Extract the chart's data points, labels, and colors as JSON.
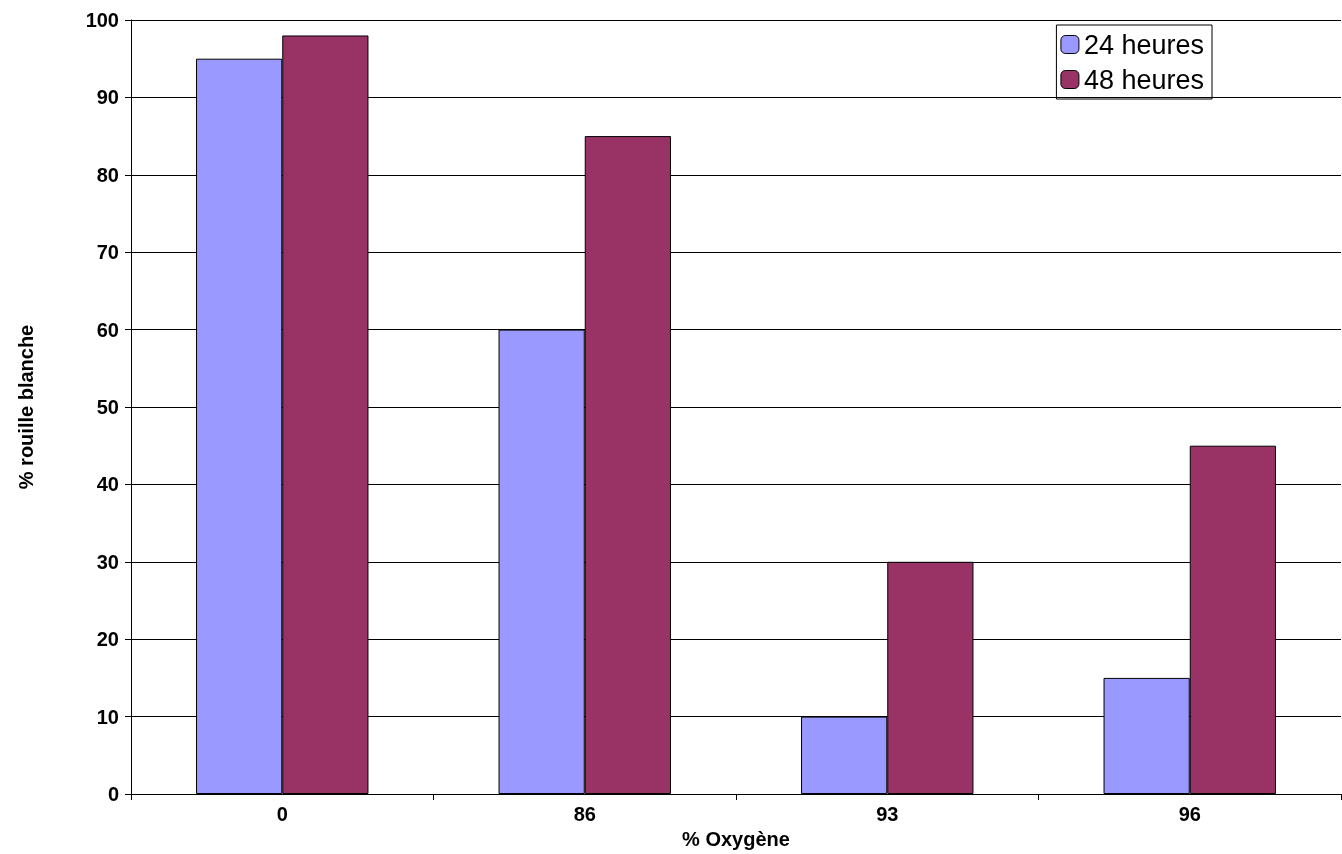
{
  "chart_data": {
    "type": "bar",
    "xlabel": "% Oxygène",
    "ylabel": "% rouille blanche",
    "categories": [
      "0",
      "86",
      "93",
      "96"
    ],
    "series": [
      {
        "name": "24 heures",
        "color": "#9999ff",
        "values": [
          95,
          60,
          10,
          15
        ]
      },
      {
        "name": "48 heures",
        "color": "#993366",
        "values": [
          98,
          85,
          30,
          45
        ]
      }
    ],
    "ylim": [
      0,
      100
    ],
    "yticks": [
      0,
      10,
      20,
      30,
      40,
      50,
      60,
      70,
      80,
      90,
      100
    ],
    "grid": "y",
    "legend": "top right"
  }
}
